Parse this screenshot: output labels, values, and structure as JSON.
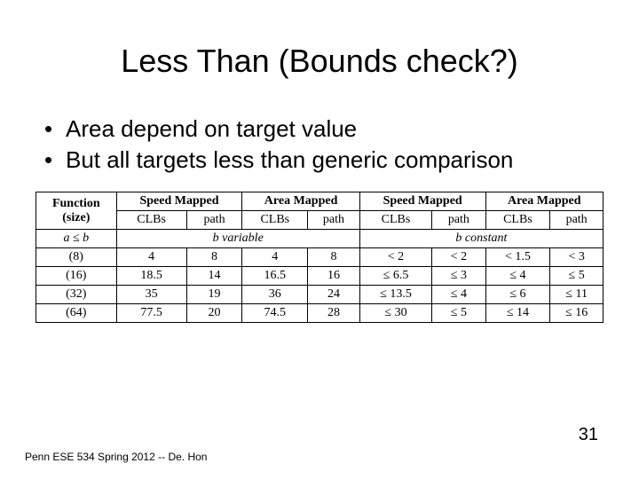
{
  "title": "Less Than (Bounds check?)",
  "bullets": [
    "Area depend on target value",
    "But all targets less than generic comparison"
  ],
  "table": {
    "header_top": {
      "func": "Function",
      "func_sub": "(size)",
      "sm": "Speed Mapped",
      "am": "Area Mapped",
      "clbs": "CLBs",
      "path": "path"
    },
    "span_variable": "b variable",
    "span_constant": "b constant",
    "rows": [
      {
        "size": "(8)",
        "v_sm_clbs": "4",
        "v_sm_path": "8",
        "v_am_clbs": "4",
        "v_am_path": "8",
        "c_sm_clbs": "< 2",
        "c_sm_path": "< 2",
        "c_am_clbs": "< 1.5",
        "c_am_path": "< 3"
      },
      {
        "size": "(16)",
        "v_sm_clbs": "18.5",
        "v_sm_path": "14",
        "v_am_clbs": "16.5",
        "v_am_path": "16",
        "c_sm_clbs": "≤ 6.5",
        "c_sm_path": "≤ 3",
        "c_am_clbs": "≤ 4",
        "c_am_path": "≤ 5"
      },
      {
        "size": "(32)",
        "v_sm_clbs": "35",
        "v_sm_path": "19",
        "v_am_clbs": "36",
        "v_am_path": "24",
        "c_sm_clbs": "≤ 13.5",
        "c_sm_path": "≤ 4",
        "c_am_clbs": "≤ 6",
        "c_am_path": "≤ 11"
      },
      {
        "size": "(64)",
        "v_sm_clbs": "77.5",
        "v_sm_path": "20",
        "v_am_clbs": "74.5",
        "v_am_path": "28",
        "c_sm_clbs": "≤ 30",
        "c_sm_path": "≤ 5",
        "c_am_clbs": "≤ 14",
        "c_am_path": "≤ 16"
      }
    ],
    "a_le_b": "a ≤ b"
  },
  "footer": "Penn ESE 534 Spring 2012 -- De. Hon",
  "pagenum": "31",
  "colors": {
    "background": "#ffffff",
    "text": "#000000",
    "border": "#000000"
  }
}
